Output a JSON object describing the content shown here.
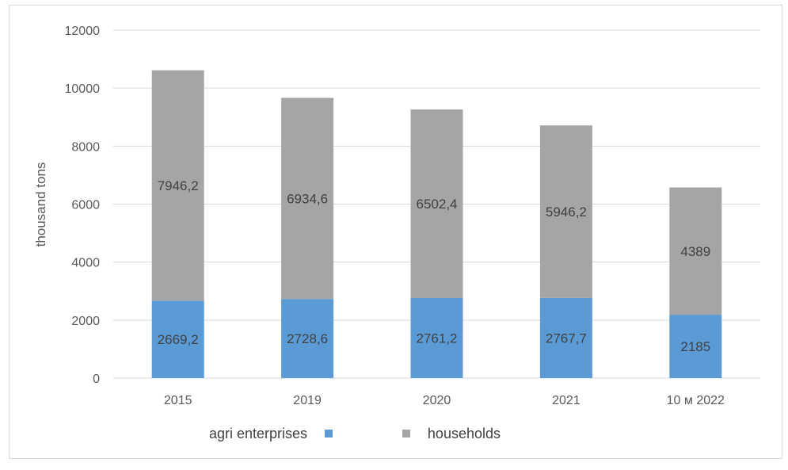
{
  "chart_data": {
    "type": "bar",
    "stacked": true,
    "categories": [
      "2015",
      "2019",
      "2020",
      "2021",
      "10 м 2022"
    ],
    "series": [
      {
        "name": "agri enterprises",
        "values": [
          2669.2,
          2728.6,
          2761.2,
          2767.7,
          2185
        ],
        "labels": [
          "2669,2",
          "2728,6",
          "2761,2",
          "2767,7",
          "2185"
        ],
        "color": "#5b9bd5"
      },
      {
        "name": "households",
        "values": [
          7946.2,
          6934.6,
          6502.4,
          5946.2,
          4389
        ],
        "labels": [
          "7946,2",
          "6934,6",
          "6502,4",
          "5946,2",
          "4389"
        ],
        "color": "#a5a5a5"
      }
    ],
    "title": "",
    "xlabel": "",
    "ylabel": "thousand tons",
    "ylim": [
      0,
      12000
    ],
    "yticks": [
      0,
      2000,
      4000,
      6000,
      8000,
      10000,
      12000
    ],
    "grid": true,
    "legend_position": "bottom"
  }
}
